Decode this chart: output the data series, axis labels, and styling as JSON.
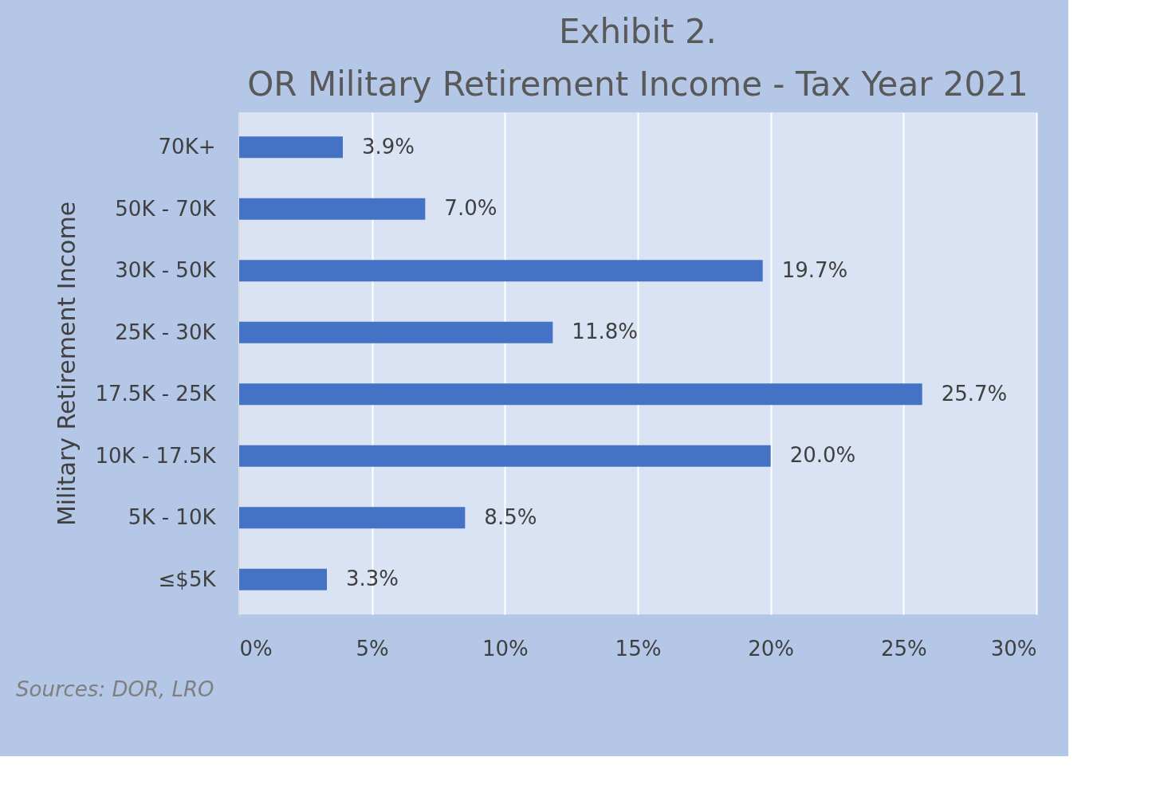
{
  "chart_data": {
    "type": "bar",
    "orientation": "horizontal",
    "title": "Exhibit 2.\nOR Military Retirement Income - Tax Year 2021",
    "ylabel": "Military Retirement Income",
    "categories": [
      "70K+",
      "50K - 70K",
      "30K - 50K",
      "25K - 30K",
      "17.5K - 25K",
      "10K - 17.5K",
      "5K - 10K",
      "≤$5K"
    ],
    "values": [
      3.9,
      7.0,
      19.7,
      11.8,
      25.7,
      20.0,
      8.5,
      3.3
    ],
    "value_labels": [
      "3.9%",
      "7.0%",
      "19.7%",
      "11.8%",
      "25.7%",
      "20.0%",
      "8.5%",
      "3.3%"
    ],
    "color": "#4472c4",
    "xlim": [
      0,
      30
    ],
    "xticks": [
      {
        "value": 0,
        "label": "0%"
      },
      {
        "value": 5,
        "label": "5%"
      },
      {
        "value": 10,
        "label": "10%"
      },
      {
        "value": 15,
        "label": "15%"
      },
      {
        "value": 20,
        "label": "20%"
      },
      {
        "value": 25,
        "label": "25%"
      },
      {
        "value": 30,
        "label": "30%"
      }
    ],
    "grid": "x",
    "annotations": [
      "Sources: DOR, LRO"
    ]
  }
}
